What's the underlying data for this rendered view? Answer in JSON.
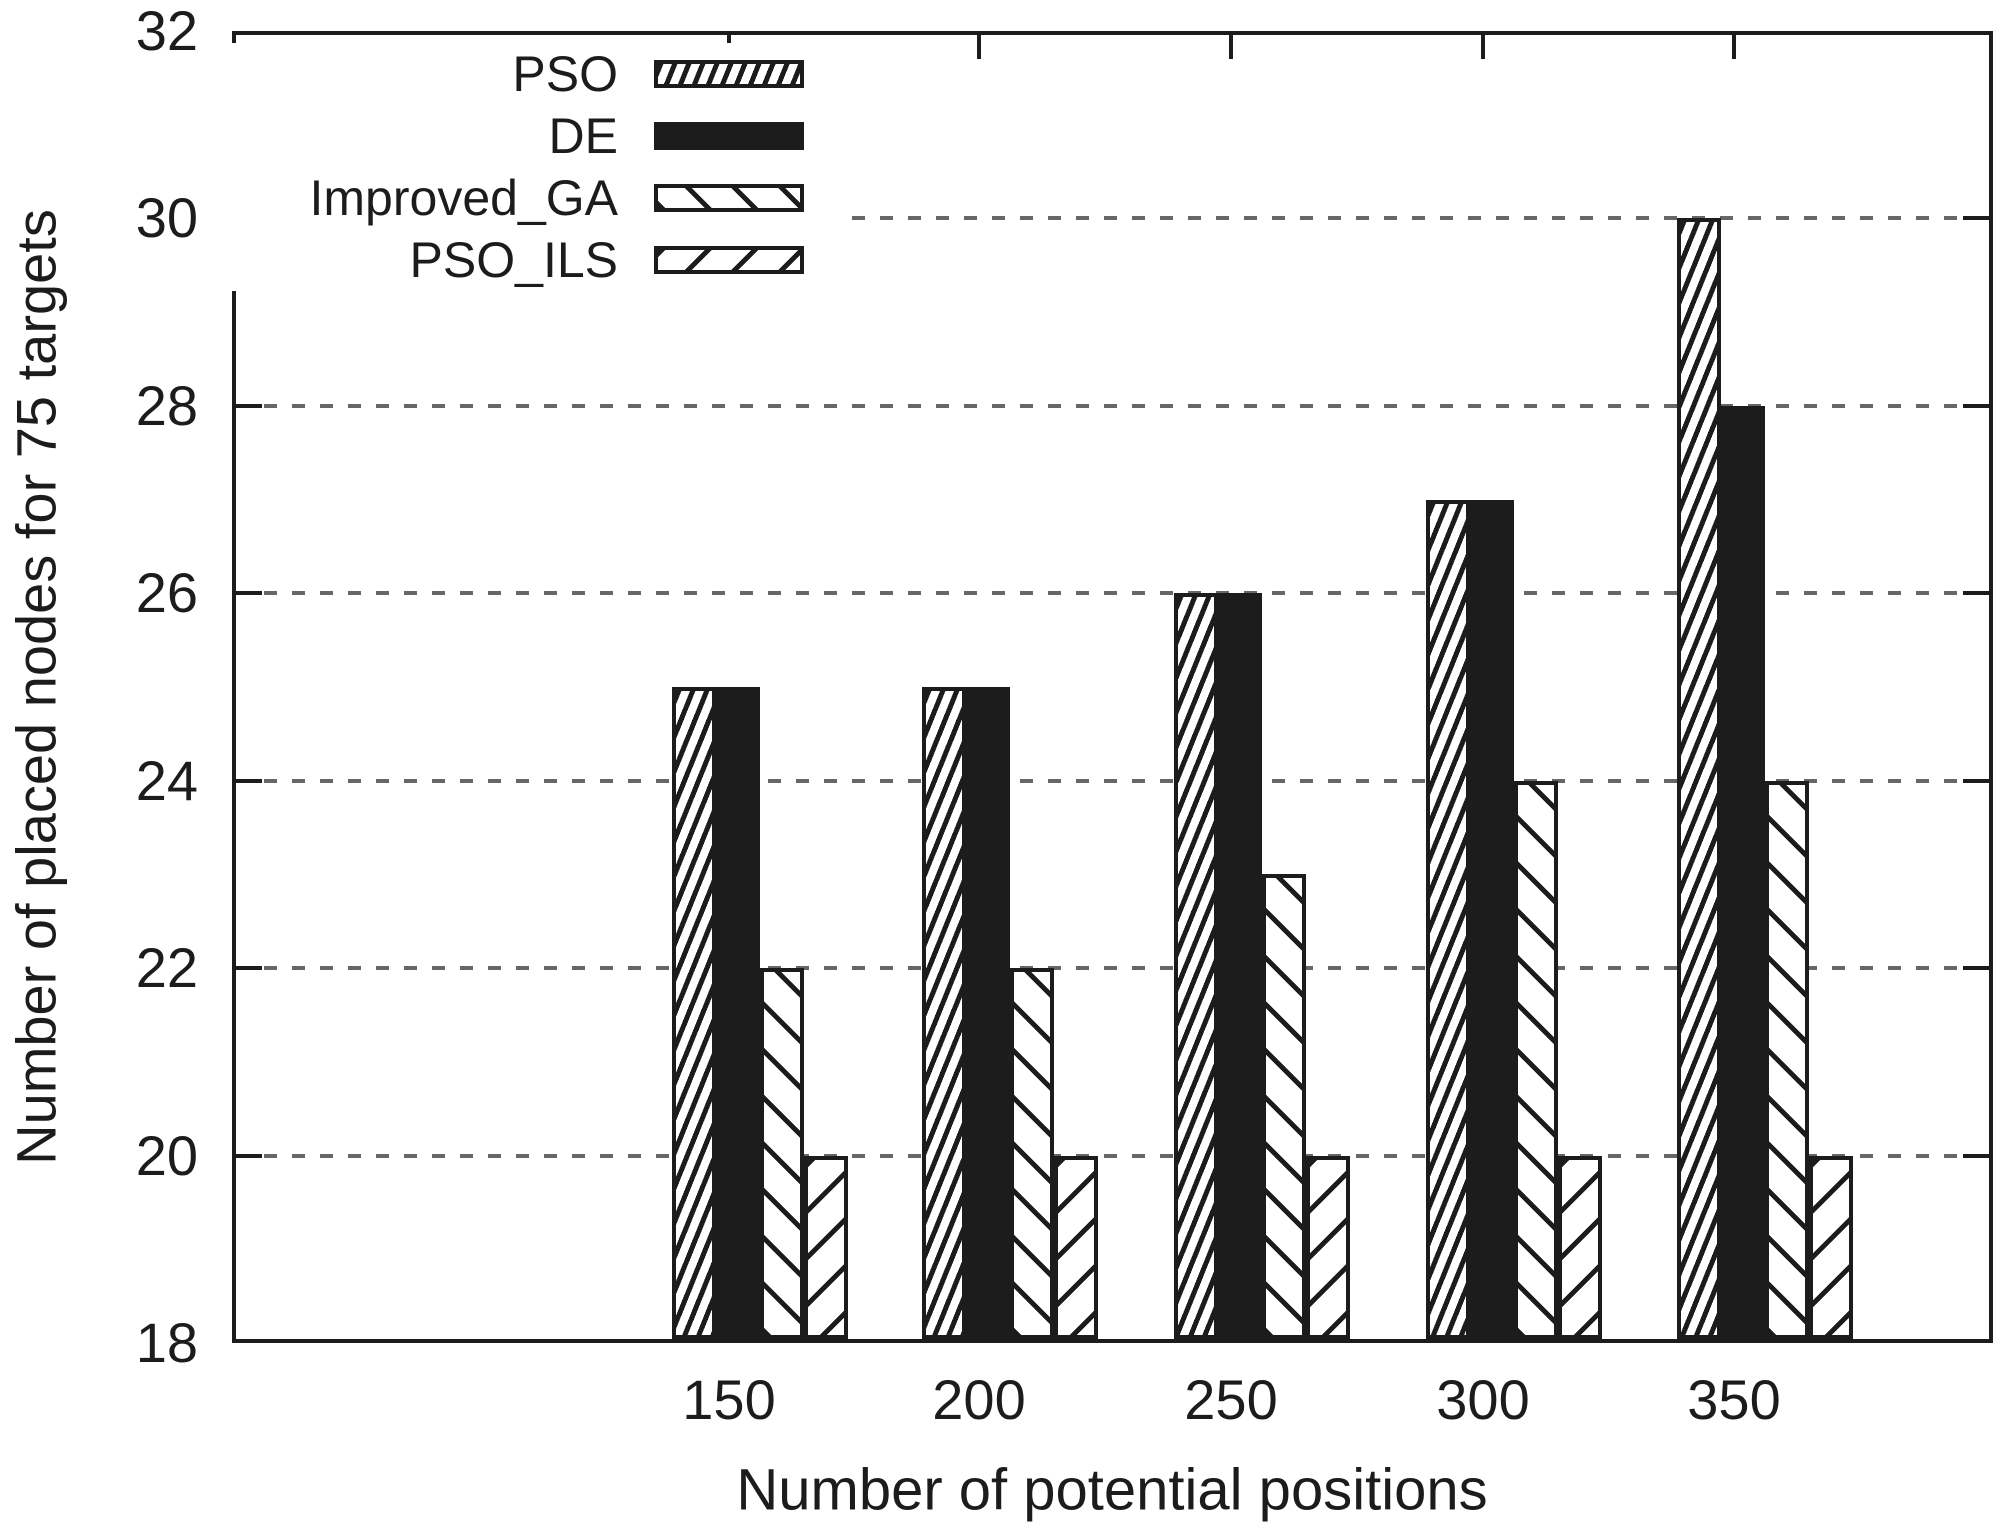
{
  "chart_data": {
    "type": "bar",
    "title": "",
    "xlabel": "Number of potential positions",
    "ylabel": "Number of placed nodes for 75 targets",
    "categories": [
      "150",
      "200",
      "250",
      "300",
      "350"
    ],
    "series": [
      {
        "name": "PSO",
        "pattern": "pso",
        "hatch": "dense-steep-forward-diagonal",
        "values": [
          25,
          25,
          26,
          27,
          30
        ]
      },
      {
        "name": "DE",
        "pattern": "de",
        "hatch": "solid-black",
        "values": [
          25,
          25,
          26,
          27,
          28
        ]
      },
      {
        "name": "Improved_GA",
        "pattern": "iga",
        "hatch": "backward-diagonal",
        "values": [
          22,
          22,
          23,
          24,
          24
        ]
      },
      {
        "name": "PSO_ILS",
        "pattern": "ils",
        "hatch": "forward-diagonal",
        "values": [
          20,
          20,
          20,
          20,
          20
        ]
      }
    ],
    "ylim": [
      18,
      32
    ],
    "yticks": [
      18,
      20,
      22,
      24,
      26,
      28,
      30,
      32
    ],
    "ytick_labels": [
      "18",
      "20",
      "22",
      "24",
      "26",
      "28",
      "30",
      "32"
    ],
    "grid": "horizontal-dashed",
    "gridline_values": [
      20,
      22,
      24,
      26,
      28,
      30
    ],
    "legend_position": "top-left-inside",
    "legend_entries": [
      "PSO",
      "DE",
      "Improved_GA",
      "PSO_ILS"
    ],
    "colors": {
      "ink": "#1c1c1c",
      "grid": "#676767",
      "background": "#ffffff"
    }
  }
}
